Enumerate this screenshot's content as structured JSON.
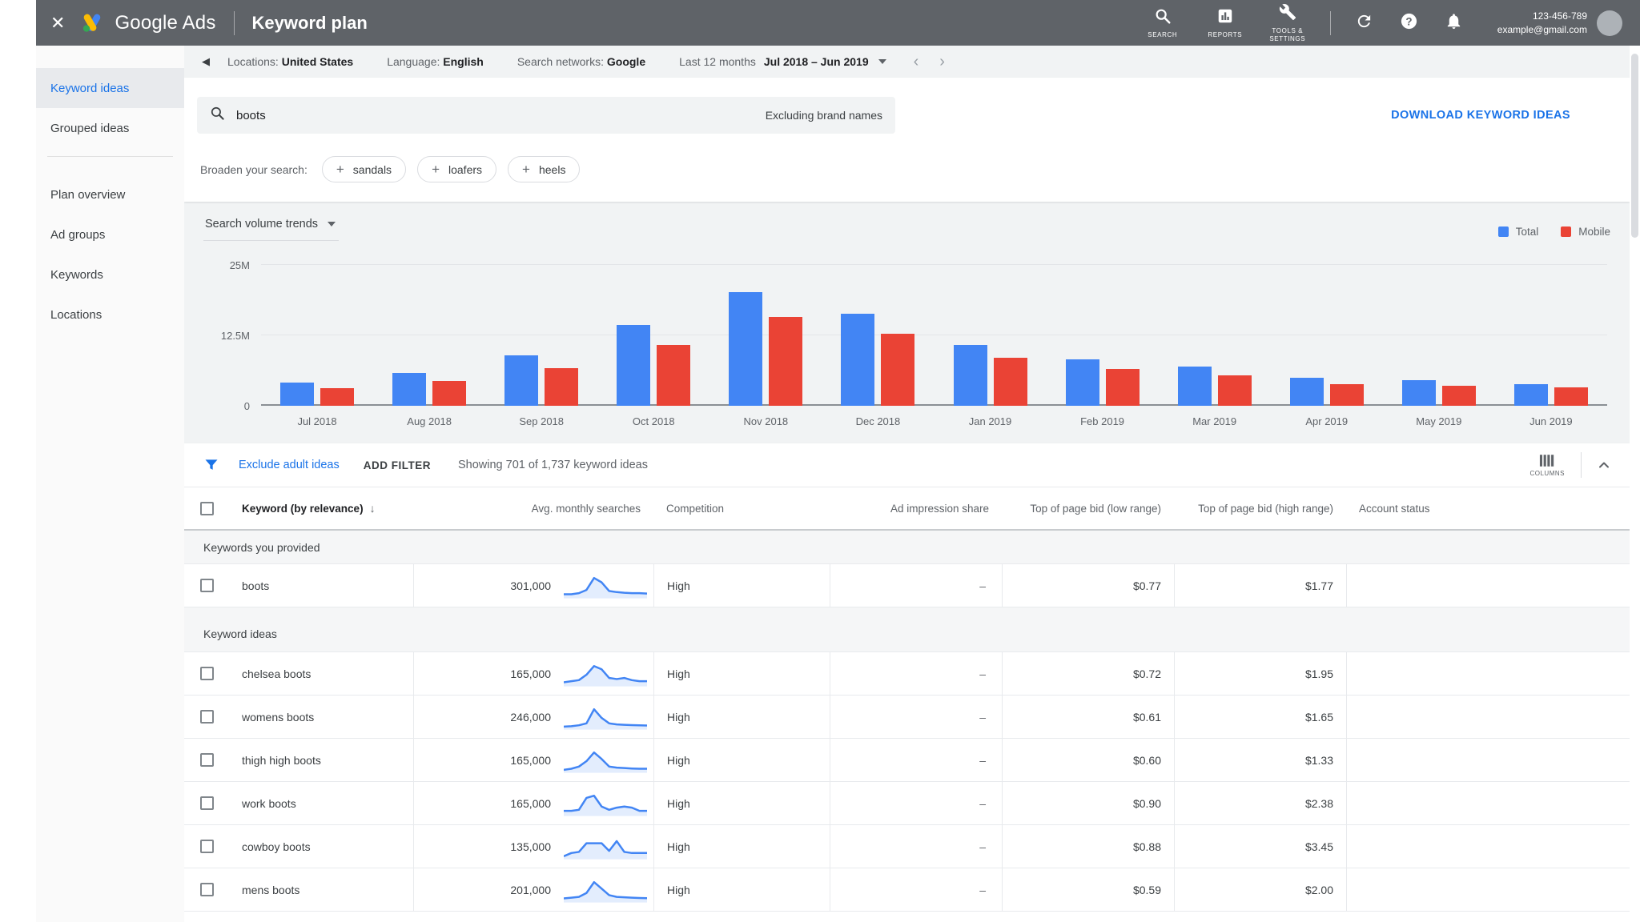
{
  "colors": {
    "accent_blue": "#1a73e8",
    "bar_total": "#4285f4",
    "bar_mobile": "#ea4335"
  },
  "topbar": {
    "close": "✕",
    "brand": "Google Ads",
    "title": "Keyword plan",
    "nav": [
      {
        "label": "SEARCH"
      },
      {
        "label": "REPORTS"
      },
      {
        "label": "TOOLS & SETTINGS"
      }
    ],
    "account_id": "123-456-789",
    "email": "example@gmail.com"
  },
  "sidebar": {
    "divider_after": 1,
    "items": [
      {
        "label": "Keyword ideas",
        "active": true
      },
      {
        "label": "Grouped ideas",
        "active": false
      },
      {
        "label": "Plan overview",
        "active": false
      },
      {
        "label": "Ad groups",
        "active": false
      },
      {
        "label": "Keywords",
        "active": false
      },
      {
        "label": "Locations",
        "active": false
      }
    ]
  },
  "context_bar": {
    "back": "◀",
    "items": [
      {
        "label": "Locations:",
        "value": "United States"
      },
      {
        "label": "Language:",
        "value": "English"
      },
      {
        "label": "Search networks:",
        "value": "Google"
      }
    ],
    "range_label": "Last 12 months",
    "range_value": "Jul 2018 – Jun 2019",
    "prev": "‹",
    "next": "›"
  },
  "search_card": {
    "query": "boots",
    "exclusion": "Excluding brand names",
    "download": "DOWNLOAD KEYWORD IDEAS",
    "broaden_label": "Broaden your search:",
    "chip_plus": "+",
    "chips": [
      "sandals",
      "loafers",
      "heels"
    ]
  },
  "chart_data": {
    "type": "bar",
    "title": "Search volume trends",
    "categories": [
      "Jul 2018",
      "Aug 2018",
      "Sep 2018",
      "Oct 2018",
      "Nov 2018",
      "Dec 2018",
      "Jan 2019",
      "Feb 2019",
      "Mar 2019",
      "Apr 2019",
      "May 2019",
      "Jun 2019"
    ],
    "series": [
      {
        "name": "Total",
        "color": "#4285f4",
        "values": [
          4100000,
          5800000,
          9000000,
          14300000,
          20200000,
          16400000,
          10800000,
          8200000,
          6900000,
          5000000,
          4600000,
          3900000
        ]
      },
      {
        "name": "Mobile",
        "color": "#ea4335",
        "values": [
          3100000,
          4400000,
          6700000,
          10800000,
          15700000,
          12800000,
          8500000,
          6600000,
          5400000,
          3800000,
          3600000,
          3200000
        ]
      }
    ],
    "ylim": [
      0,
      25000000
    ],
    "yticks": [
      {
        "label": "25M",
        "value": 25000000
      },
      {
        "label": "12.5M",
        "value": 12500000
      },
      {
        "label": "0",
        "value": 0
      }
    ],
    "legend_position": "top-right",
    "grid": true
  },
  "table": {
    "filter": {
      "exclude_link": "Exclude adult ideas",
      "add_filter": "ADD FILTER",
      "showing": "Showing 701 of 1,737 keyword ideas",
      "columns_label": "COLUMNS"
    },
    "columns": [
      {
        "label": "Keyword (by relevance)",
        "sort": "↓",
        "align": "left"
      },
      {
        "label": "Avg. monthly searches",
        "align": "right"
      },
      {
        "label": "Competition",
        "align": "left"
      },
      {
        "label": "Ad impression share",
        "align": "right"
      },
      {
        "label": "Top of page bid (low range)",
        "align": "right"
      },
      {
        "label": "Top of page bid (high range)",
        "align": "right"
      },
      {
        "label": "Account status",
        "align": "left"
      }
    ],
    "sections": [
      {
        "label": "Keywords you provided",
        "rows": [
          {
            "keyword": "boots",
            "searches": "301,000",
            "spark": [
              1.5,
              1.5,
              2,
              3.5,
              9,
              7,
              3,
              2.5,
              2.2,
              2,
              2,
              1.8
            ],
            "competition": "High",
            "ad_impression_share": "–",
            "bid_low": "$0.77",
            "bid_high": "$1.77",
            "account_status": ""
          }
        ]
      },
      {
        "label": "Keyword ideas",
        "rows": [
          {
            "keyword": "chelsea boots",
            "searches": "165,000",
            "spark": [
              1.5,
              2,
              2.5,
              5,
              9,
              7.5,
              3.5,
              3,
              3.5,
              2.5,
              2,
              2
            ],
            "competition": "High",
            "ad_impression_share": "–",
            "bid_low": "$0.72",
            "bid_high": "$1.95",
            "account_status": ""
          },
          {
            "keyword": "womens boots",
            "searches": "246,000",
            "spark": [
              1,
              1.2,
              1.6,
              2.5,
              9,
              5,
              2.5,
              2,
              1.8,
              1.7,
              1.6,
              1.5
            ],
            "competition": "High",
            "ad_impression_share": "–",
            "bid_low": "$0.61",
            "bid_high": "$1.65",
            "account_status": ""
          },
          {
            "keyword": "thigh high boots",
            "searches": "165,000",
            "spark": [
              1,
              1.5,
              2.5,
              5,
              9,
              6,
              2.5,
              2,
              1.8,
              1.6,
              1.5,
              1.5
            ],
            "competition": "High",
            "ad_impression_share": "–",
            "bid_low": "$0.60",
            "bid_high": "$1.33",
            "account_status": ""
          },
          {
            "keyword": "work boots",
            "searches": "165,000",
            "spark": [
              2,
              2,
              2.5,
              8,
              9,
              4,
              2.5,
              3.5,
              4,
              3.5,
              2,
              2
            ],
            "competition": "High",
            "ad_impression_share": "–",
            "bid_low": "$0.90",
            "bid_high": "$2.38",
            "account_status": ""
          },
          {
            "keyword": "cowboy boots",
            "searches": "135,000",
            "spark": [
              1,
              2.5,
              3,
              7,
              7,
              7,
              3.5,
              8,
              3,
              2.5,
              2.5,
              2.5
            ],
            "competition": "High",
            "ad_impression_share": "–",
            "bid_low": "$0.88",
            "bid_high": "$3.45",
            "account_status": ""
          },
          {
            "keyword": "mens boots",
            "searches": "201,000",
            "spark": [
              1.5,
              1.8,
              2.2,
              4,
              9,
              6,
              3,
              2.2,
              2,
              1.8,
              1.7,
              1.6
            ],
            "competition": "High",
            "ad_impression_share": "–",
            "bid_low": "$0.59",
            "bid_high": "$2.00",
            "account_status": ""
          }
        ]
      }
    ]
  }
}
